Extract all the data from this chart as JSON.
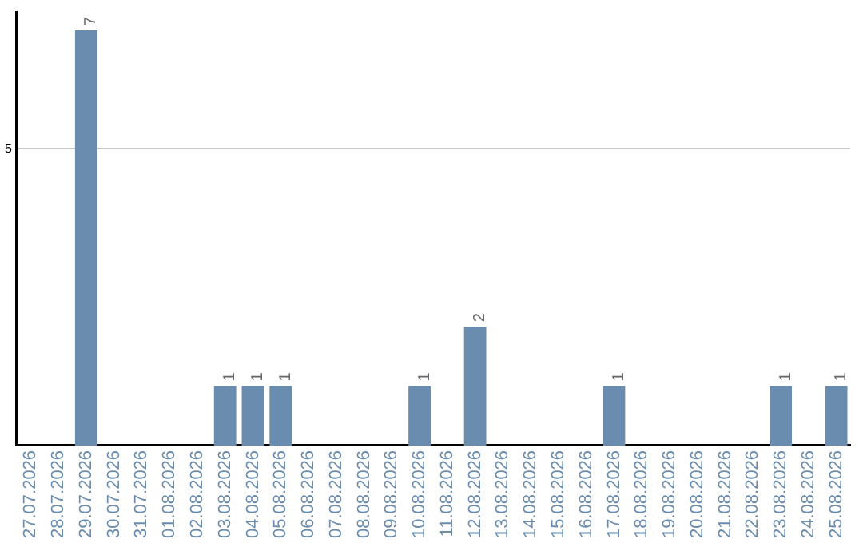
{
  "chart_data": {
    "type": "bar",
    "categories": [
      "27.07.2026",
      "28.07.2026",
      "29.07.2026",
      "30.07.2026",
      "31.07.2026",
      "01.08.2026",
      "02.08.2026",
      "03.08.2026",
      "04.08.2026",
      "05.08.2026",
      "06.08.2026",
      "07.08.2026",
      "08.08.2026",
      "09.08.2026",
      "10.08.2026",
      "11.08.2026",
      "12.08.2026",
      "13.08.2026",
      "14.08.2026",
      "15.08.2026",
      "16.08.2026",
      "17.08.2026",
      "18.08.2026",
      "19.08.2026",
      "20.08.2026",
      "21.08.2026",
      "22.08.2026",
      "23.08.2026",
      "24.08.2026",
      "25.08.2026"
    ],
    "values": [
      0,
      0,
      7,
      0,
      0,
      0,
      0,
      1,
      1,
      1,
      0,
      0,
      0,
      0,
      1,
      0,
      2,
      0,
      0,
      0,
      0,
      1,
      0,
      0,
      0,
      0,
      0,
      1,
      0,
      1
    ],
    "color": "#6a8caf",
    "ylim": [
      0,
      7.3
    ],
    "yticks": [
      5
    ],
    "grid": "y",
    "legend": false,
    "value_labels": [
      null,
      null,
      "7",
      null,
      null,
      null,
      null,
      "1",
      "1",
      "1",
      null,
      null,
      null,
      null,
      "1",
      null,
      "2",
      null,
      null,
      null,
      null,
      "1",
      null,
      null,
      null,
      null,
      null,
      "1",
      null,
      "1"
    ]
  }
}
